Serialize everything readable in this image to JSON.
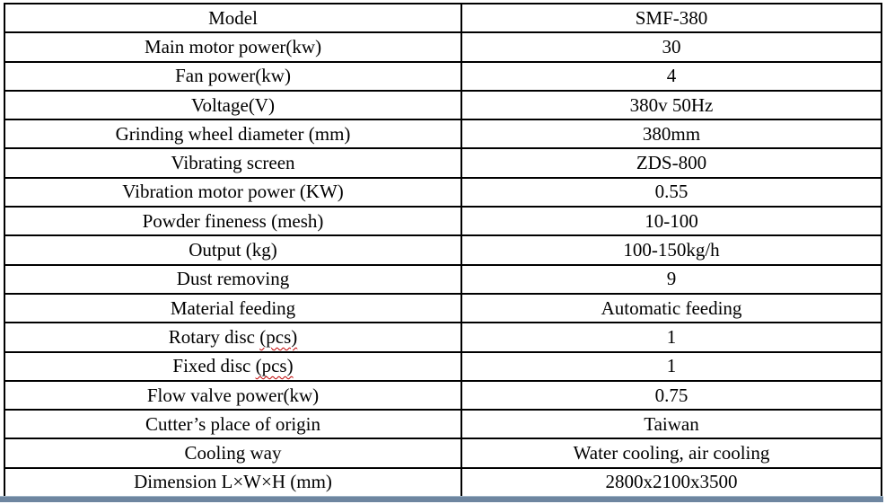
{
  "table": {
    "rows": [
      {
        "label": "Model",
        "value": "SMF-380"
      },
      {
        "label": "Main motor power(kw)",
        "value": "30"
      },
      {
        "label": "Fan power(kw)",
        "value": "4"
      },
      {
        "label": "Voltage(V)",
        "value": "380v 50Hz"
      },
      {
        "label": "Grinding wheel diameter (mm)",
        "value": "380mm"
      },
      {
        "label": "Vibrating screen",
        "value": "ZDS-800"
      },
      {
        "label": "Vibration motor power (KW)",
        "value": "0.55"
      },
      {
        "label": "Powder fineness (mesh)",
        "value": "10-100"
      },
      {
        "label": "Output (kg)",
        "value": "100-150kg/h"
      },
      {
        "label": "Dust removing",
        "value": "9"
      },
      {
        "label": "Material feeding",
        "value": "Automatic feeding"
      },
      {
        "label_prefix": "Rotary disc ",
        "label_misspelled": "(pcs)",
        "label_suffix": "",
        "value": "1"
      },
      {
        "label_prefix": "Fixed disc ",
        "label_misspelled": "(pcs)",
        "label_suffix": "",
        "value": "1"
      },
      {
        "label": "Flow valve power(kw)",
        "value": "0.75"
      },
      {
        "label": "Cutter’s place of origin",
        "value": "Taiwan"
      },
      {
        "label": "Cooling way",
        "value": "Water cooling, air cooling"
      },
      {
        "label": "Dimension L×W×H (mm)",
        "value": "2800x2100x3500"
      }
    ],
    "colors": {
      "border": "#000000",
      "text": "#000000",
      "accent_bar": "#6e86a0",
      "accent_bar_highlight": "#a0b4c6",
      "spellcheck_underline": "#c00000"
    }
  }
}
